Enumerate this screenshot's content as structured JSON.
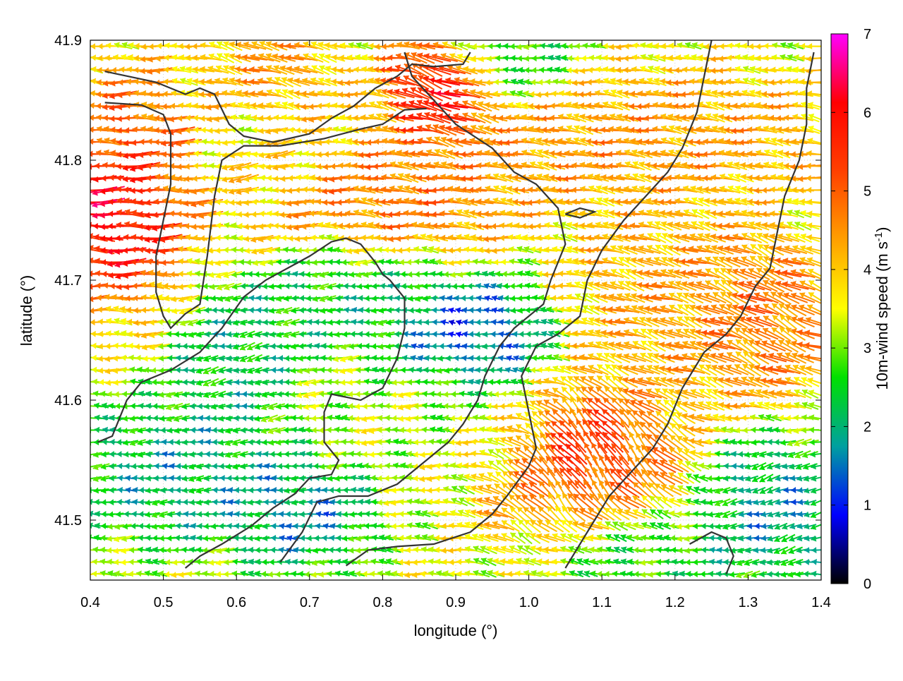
{
  "chart_data": {
    "type": "vector_field",
    "xlabel": "longitude (°)",
    "ylabel": "latitude (°)",
    "xlim": [
      0.4,
      1.4
    ],
    "ylim": [
      41.45,
      41.9
    ],
    "x_ticks": [
      "0.4",
      "0.5",
      "0.6",
      "0.7",
      "0.8",
      "0.9",
      "1.0",
      "1.1",
      "1.2",
      "1.3",
      "1.4"
    ],
    "y_ticks": [
      "41.5",
      "41.6",
      "41.7",
      "41.8",
      "41.9"
    ],
    "colorbar": {
      "label": "10m-wind speed (m s-1)",
      "label_main": "10m-wind speed (m s",
      "label_sup": "-1",
      "label_end": ")",
      "range": [
        0,
        7
      ],
      "ticks": [
        "0",
        "1",
        "2",
        "3",
        "4",
        "5",
        "6",
        "7"
      ],
      "colors": [
        "#000000",
        "#0000ff",
        "#00a0a0",
        "#00e000",
        "#ffff00",
        "#ffa000",
        "#ff4000",
        "#ff0000",
        "#ff00ff"
      ]
    },
    "grid": true,
    "contour_color": "#333333",
    "field_grid": {
      "lon_step": 0.01,
      "lat_step": 0.01
    },
    "wind_regions": [
      {
        "lon": [
          0.4,
          0.52
        ],
        "lat": [
          41.7,
          41.85
        ],
        "speed": 5.5,
        "dir_deg": 180
      },
      {
        "lon": [
          0.4,
          0.47
        ],
        "lat": [
          41.72,
          41.78
        ],
        "speed": 6.8,
        "dir_deg": 180
      },
      {
        "lon": [
          0.57,
          0.73
        ],
        "lat": [
          41.75,
          41.84
        ],
        "speed": 3.5,
        "dir_deg": 190
      },
      {
        "lon": [
          0.62,
          0.95
        ],
        "lat": [
          41.74,
          41.8
        ],
        "speed": 5.0,
        "dir_deg": 172
      },
      {
        "lon": [
          0.8,
          1.4
        ],
        "lat": [
          41.78,
          41.86
        ],
        "speed": 4.6,
        "dir_deg": 170
      },
      {
        "lon": [
          0.85,
          0.92
        ],
        "lat": [
          41.83,
          41.88
        ],
        "speed": 6.6,
        "dir_deg": 155
      },
      {
        "lon": [
          0.65,
          0.83
        ],
        "lat": [
          41.65,
          41.72
        ],
        "speed": 2.2,
        "dir_deg": 185
      },
      {
        "lon": [
          0.55,
          0.66
        ],
        "lat": [
          41.58,
          41.68
        ],
        "speed": 2.0,
        "dir_deg": 195
      },
      {
        "lon": [
          0.84,
          0.99
        ],
        "lat": [
          41.62,
          41.68
        ],
        "speed": 0.9,
        "dir_deg": 175
      },
      {
        "lon": [
          0.7,
          0.98
        ],
        "lat": [
          41.55,
          41.63
        ],
        "speed": 3.2,
        "dir_deg": 180
      },
      {
        "lon": [
          0.42,
          0.62
        ],
        "lat": [
          41.5,
          41.58
        ],
        "speed": 1.8,
        "dir_deg": 185
      },
      {
        "lon": [
          0.62,
          0.75
        ],
        "lat": [
          41.48,
          41.54
        ],
        "speed": 1.5,
        "dir_deg": 180
      },
      {
        "lon": [
          0.98,
          1.2
        ],
        "lat": [
          41.48,
          41.6
        ],
        "speed": 4.8,
        "dir_deg": 125
      },
      {
        "lon": [
          1.05,
          1.12
        ],
        "lat": [
          41.53,
          41.58
        ],
        "speed": 6.0,
        "dir_deg": 120
      },
      {
        "lon": [
          1.1,
          1.28
        ],
        "lat": [
          41.62,
          41.75
        ],
        "speed": 4.4,
        "dir_deg": 160
      },
      {
        "lon": [
          1.25,
          1.38
        ],
        "lat": [
          41.62,
          41.72
        ],
        "speed": 4.9,
        "dir_deg": 150
      },
      {
        "lon": [
          1.26,
          1.4
        ],
        "lat": [
          41.47,
          41.55
        ],
        "speed": 1.6,
        "dir_deg": 200
      },
      {
        "lon": [
          1.05,
          1.25
        ],
        "lat": [
          41.45,
          41.5
        ],
        "speed": 2.2,
        "dir_deg": 180
      },
      {
        "lon": [
          0.6,
          0.7
        ],
        "lat": [
          41.84,
          41.9
        ],
        "speed": 4.5,
        "dir_deg": 160
      },
      {
        "lon": [
          0.92,
          1.05
        ],
        "lat": [
          41.86,
          41.9
        ],
        "speed": 2.3,
        "dir_deg": 180
      }
    ],
    "contours": [
      [
        [
          0.42,
          41.874
        ],
        [
          0.49,
          41.865
        ],
        [
          0.53,
          41.855
        ],
        [
          0.55,
          41.86
        ],
        [
          0.57,
          41.855
        ],
        [
          0.59,
          41.83
        ],
        [
          0.61,
          41.82
        ],
        [
          0.65,
          41.815
        ],
        [
          0.7,
          41.822
        ],
        [
          0.73,
          41.835
        ],
        [
          0.76,
          41.845
        ],
        [
          0.79,
          41.86
        ],
        [
          0.82,
          41.87
        ],
        [
          0.84,
          41.88
        ],
        [
          0.87,
          41.878
        ],
        [
          0.91,
          41.88
        ],
        [
          0.92,
          41.89
        ]
      ],
      [
        [
          0.42,
          41.848
        ],
        [
          0.47,
          41.846
        ],
        [
          0.5,
          41.838
        ],
        [
          0.51,
          41.822
        ],
        [
          0.51,
          41.78
        ],
        [
          0.5,
          41.75
        ],
        [
          0.49,
          41.72
        ],
        [
          0.49,
          41.69
        ],
        [
          0.5,
          41.67
        ],
        [
          0.51,
          41.66
        ],
        [
          0.53,
          41.672
        ],
        [
          0.55,
          41.68
        ],
        [
          0.56,
          41.72
        ],
        [
          0.57,
          41.77
        ],
        [
          0.58,
          41.8
        ],
        [
          0.61,
          41.812
        ],
        [
          0.66,
          41.812
        ],
        [
          0.72,
          41.818
        ],
        [
          0.77,
          41.826
        ],
        [
          0.8,
          41.83
        ],
        [
          0.83,
          41.842
        ],
        [
          0.86,
          41.843
        ]
      ],
      [
        [
          0.41,
          41.565
        ],
        [
          0.43,
          41.57
        ],
        [
          0.45,
          41.6
        ],
        [
          0.47,
          41.615
        ],
        [
          0.51,
          41.625
        ],
        [
          0.55,
          41.64
        ],
        [
          0.58,
          41.66
        ],
        [
          0.61,
          41.686
        ],
        [
          0.64,
          41.7
        ],
        [
          0.67,
          41.71
        ],
        [
          0.7,
          41.72
        ],
        [
          0.73,
          41.732
        ],
        [
          0.75,
          41.735
        ],
        [
          0.77,
          41.73
        ],
        [
          0.79,
          41.715
        ],
        [
          0.8,
          41.705
        ],
        [
          0.81,
          41.7
        ],
        [
          0.83,
          41.685
        ],
        [
          0.83,
          41.66
        ],
        [
          0.82,
          41.635
        ],
        [
          0.8,
          41.61
        ],
        [
          0.77,
          41.6
        ],
        [
          0.73,
          41.605
        ],
        [
          0.72,
          41.59
        ],
        [
          0.72,
          41.565
        ],
        [
          0.74,
          41.55
        ],
        [
          0.73,
          41.538
        ],
        [
          0.7,
          41.535
        ],
        [
          0.68,
          41.522
        ],
        [
          0.65,
          41.51
        ],
        [
          0.62,
          41.495
        ],
        [
          0.58,
          41.48
        ],
        [
          0.55,
          41.47
        ],
        [
          0.53,
          41.46
        ]
      ],
      [
        [
          0.66,
          41.465
        ],
        [
          0.69,
          41.49
        ],
        [
          0.71,
          41.515
        ],
        [
          0.74,
          41.52
        ],
        [
          0.78,
          41.52
        ],
        [
          0.82,
          41.53
        ],
        [
          0.86,
          41.55
        ],
        [
          0.89,
          41.565
        ],
        [
          0.91,
          41.58
        ],
        [
          0.93,
          41.6
        ],
        [
          0.94,
          41.62
        ],
        [
          0.96,
          41.645
        ],
        [
          0.98,
          41.66
        ],
        [
          1.0,
          41.67
        ],
        [
          1.02,
          41.68
        ],
        [
          1.03,
          41.7
        ],
        [
          1.05,
          41.73
        ],
        [
          1.04,
          41.76
        ],
        [
          1.01,
          41.78
        ],
        [
          0.98,
          41.79
        ],
        [
          0.95,
          41.81
        ],
        [
          0.9,
          41.83
        ],
        [
          0.87,
          41.85
        ],
        [
          0.84,
          41.87
        ],
        [
          0.83,
          41.89
        ]
      ],
      [
        [
          0.75,
          41.462
        ],
        [
          0.78,
          41.475
        ],
        [
          0.82,
          41.478
        ],
        [
          0.87,
          41.48
        ],
        [
          0.92,
          41.49
        ],
        [
          0.95,
          41.505
        ],
        [
          0.97,
          41.52
        ],
        [
          1.0,
          41.545
        ],
        [
          1.01,
          41.56
        ],
        [
          1.0,
          41.59
        ],
        [
          0.99,
          41.62
        ],
        [
          1.01,
          41.645
        ],
        [
          1.04,
          41.655
        ],
        [
          1.07,
          41.67
        ],
        [
          1.08,
          41.7
        ],
        [
          1.1,
          41.725
        ],
        [
          1.13,
          41.75
        ],
        [
          1.16,
          41.77
        ],
        [
          1.19,
          41.79
        ],
        [
          1.21,
          41.81
        ],
        [
          1.23,
          41.84
        ],
        [
          1.24,
          41.87
        ],
        [
          1.25,
          41.9
        ]
      ],
      [
        [
          1.05,
          41.46
        ],
        [
          1.08,
          41.49
        ],
        [
          1.11,
          41.52
        ],
        [
          1.14,
          41.54
        ],
        [
          1.17,
          41.56
        ],
        [
          1.19,
          41.58
        ],
        [
          1.21,
          41.61
        ],
        [
          1.24,
          41.64
        ],
        [
          1.27,
          41.655
        ],
        [
          1.29,
          41.67
        ],
        [
          1.31,
          41.695
        ],
        [
          1.33,
          41.71
        ],
        [
          1.34,
          41.74
        ],
        [
          1.35,
          41.77
        ],
        [
          1.37,
          41.8
        ],
        [
          1.38,
          41.83
        ],
        [
          1.38,
          41.86
        ],
        [
          1.39,
          41.89
        ]
      ],
      [
        [
          1.22,
          41.48
        ],
        [
          1.25,
          41.49
        ],
        [
          1.27,
          41.485
        ],
        [
          1.28,
          41.47
        ],
        [
          1.27,
          41.455
        ]
      ],
      [
        [
          1.05,
          41.755
        ],
        [
          1.07,
          41.76
        ],
        [
          1.09,
          41.757
        ],
        [
          1.07,
          41.752
        ],
        [
          1.05,
          41.755
        ]
      ]
    ]
  }
}
